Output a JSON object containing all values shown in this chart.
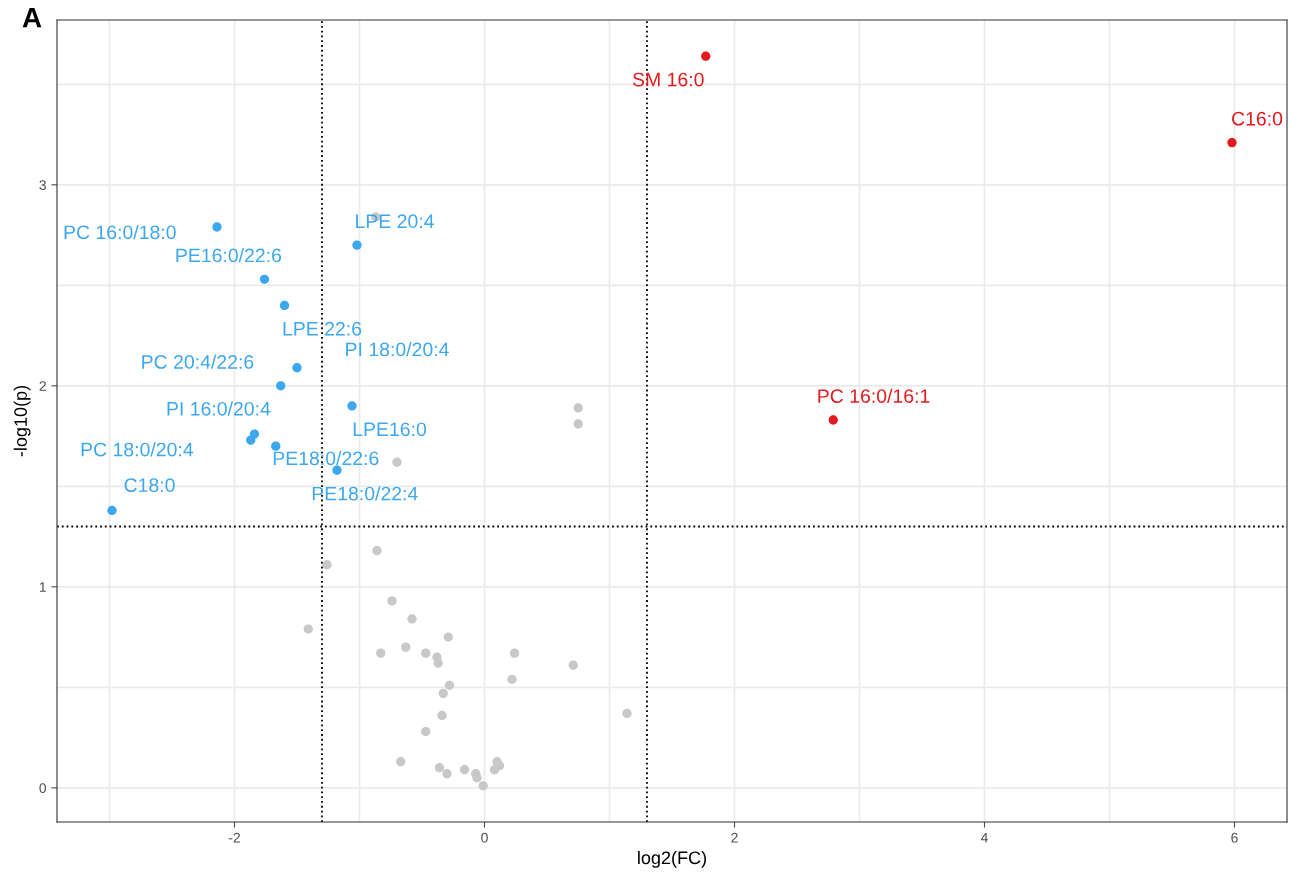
{
  "chart_data": {
    "type": "scatter",
    "title": "A",
    "xlabel": "log2(FC)",
    "ylabel": "-log10(p)",
    "xlim": [
      -3.42,
      6.42
    ],
    "ylim": [
      -0.17,
      3.82
    ],
    "xticks": [
      -2,
      0,
      2,
      4,
      6
    ],
    "yticks": [
      0,
      1,
      2,
      3
    ],
    "grid": true,
    "marker": "circle",
    "legend": false,
    "series": [
      {
        "color": "#c8c8c8",
        "x": [
          -0.87,
          -0.7,
          0.75,
          0.75,
          -0.86,
          -1.26,
          -0.74,
          -0.58,
          -1.41,
          -0.29,
          -0.63,
          -0.83,
          -0.47,
          -0.38,
          -0.37,
          0.24,
          0.71,
          0.22,
          -0.28,
          -0.33,
          -0.34,
          1.14,
          -0.47,
          -0.67,
          -0.36,
          -0.3,
          -0.16,
          -0.07,
          -0.06,
          0.1,
          0.12,
          0.08,
          -0.01
        ],
        "values": [
          2.84,
          1.62,
          1.89,
          1.81,
          1.18,
          1.11,
          0.93,
          0.84,
          0.79,
          0.75,
          0.7,
          0.67,
          0.67,
          0.65,
          0.62,
          0.67,
          0.61,
          0.54,
          0.51,
          0.47,
          0.36,
          0.37,
          0.28,
          0.13,
          0.1,
          0.07,
          0.09,
          0.07,
          0.05,
          0.13,
          0.11,
          0.09,
          0.01
        ]
      },
      {
        "color": "#3ba7ef",
        "x": [
          -2.14,
          -1.02,
          -1.76,
          -1.6,
          -1.5,
          -1.63,
          -1.06,
          -1.84,
          -1.87,
          -1.67,
          -1.18,
          -2.98
        ],
        "values": [
          2.79,
          2.7,
          2.53,
          2.4,
          2.09,
          2.0,
          1.9,
          1.76,
          1.73,
          1.7,
          1.58,
          1.38
        ]
      },
      {
        "color": "#e41a1c",
        "x": [
          1.77,
          5.98,
          2.79
        ],
        "values": [
          3.64,
          3.21,
          1.83
        ]
      }
    ],
    "ref_lines": [
      {
        "axis": "x",
        "value": -1.3,
        "line_style": "dotted",
        "color": "#000000"
      },
      {
        "axis": "x",
        "value": 1.3,
        "line_style": "dotted",
        "color": "#000000"
      },
      {
        "axis": "y",
        "value": 1.3,
        "line_style": "dotted",
        "color": "#000000"
      }
    ],
    "annotations": [
      {
        "text": "PC 16:0/18:0",
        "x": -2.14,
        "y": 2.79
      },
      {
        "text": "LPE 20:4",
        "x": -1.02,
        "y": 2.7
      },
      {
        "text": "PE16:0/22:6",
        "x": -1.76,
        "y": 2.53
      },
      {
        "text": "LPE 22:6",
        "x": -1.6,
        "y": 2.4
      },
      {
        "text": "PI 18:0/20:4",
        "x": -1.5,
        "y": 2.09
      },
      {
        "text": "PC 20:4/22:6",
        "x": -1.63,
        "y": 2.0
      },
      {
        "text": "LPE16:0",
        "x": -1.06,
        "y": 1.9
      },
      {
        "text": "PI 16:0/20:4",
        "x": -1.84,
        "y": 1.76
      },
      {
        "text": "PC 18:0/20:4",
        "x": -1.87,
        "y": 1.73
      },
      {
        "text": "PE18:0/22:6",
        "x": -1.67,
        "y": 1.7
      },
      {
        "text": "PE18:0/22:4",
        "x": -1.18,
        "y": 1.58
      },
      {
        "text": "C18:0",
        "x": -2.98,
        "y": 1.38
      },
      {
        "text": "SM 16:0",
        "x": 1.77,
        "y": 3.64
      },
      {
        "text": "C16:0",
        "x": 5.98,
        "y": 3.21
      },
      {
        "text": "PC 16:0/16:1",
        "x": 2.79,
        "y": 1.83
      }
    ]
  }
}
